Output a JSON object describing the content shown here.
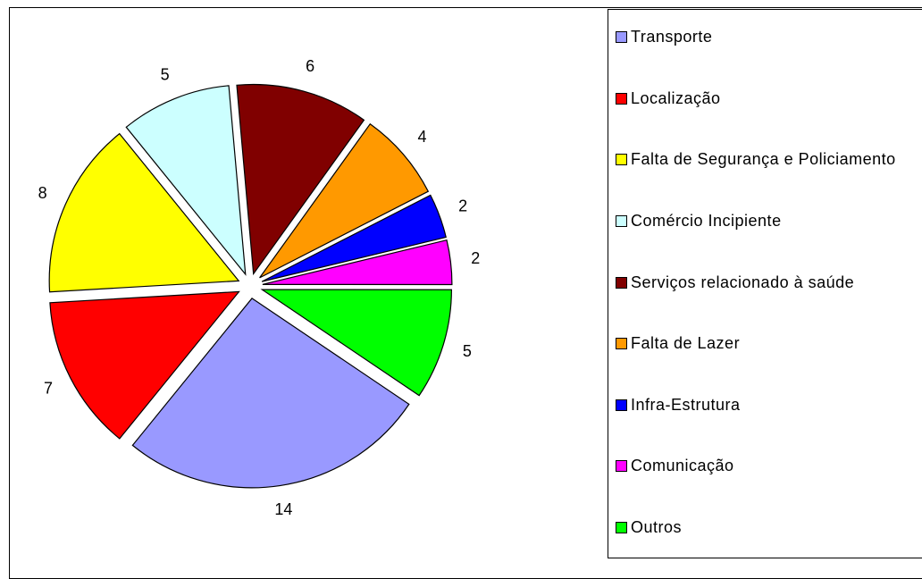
{
  "chart_data": {
    "type": "pie",
    "categories": [
      "Transporte",
      "Localização",
      "Falta de Segurança e Policiamento",
      "Comércio Incipiente",
      "Serviços relacionado à saúde",
      "Falta de Lazer",
      "Infra-Estrutura",
      "Comunicação",
      "Outros"
    ],
    "values": [
      14,
      7,
      8,
      5,
      6,
      4,
      2,
      2,
      5
    ],
    "colors": [
      "#9999ff",
      "#ff0000",
      "#ffff00",
      "#ccffff",
      "#800000",
      "#ff9900",
      "#0000ff",
      "#ff00ff",
      "#00ff00"
    ],
    "exploded": true,
    "legend": "right"
  }
}
